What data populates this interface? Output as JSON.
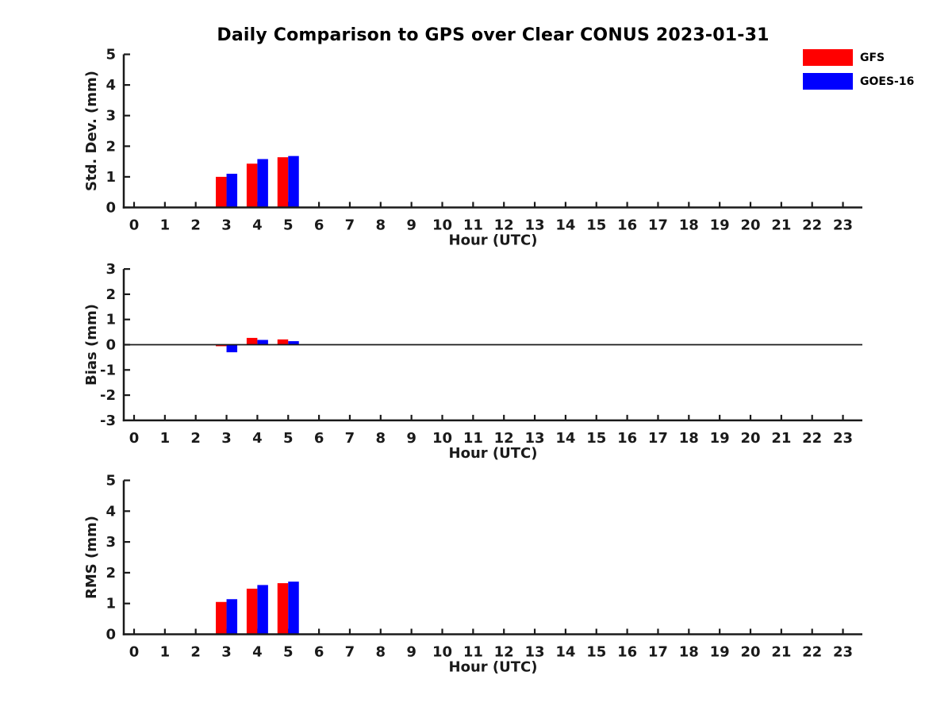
{
  "title": "Daily Comparison to GPS over Clear CONUS 2023-01-31",
  "legend": {
    "position": "top-right",
    "items": [
      {
        "label": "GFS",
        "color": "#ff0000"
      },
      {
        "label": "GOES-16",
        "color": "#0000ff"
      }
    ]
  },
  "axis_color": "#1a1a1a",
  "chart_data": [
    {
      "id": "stddev",
      "type": "bar",
      "title": "",
      "xlabel": "Hour (UTC)",
      "ylabel": "Std. Dev. (mm)",
      "ylim": [
        0,
        5
      ],
      "yticks": [
        0,
        1,
        2,
        3,
        4,
        5
      ],
      "grid": false,
      "categories": [
        0,
        1,
        2,
        3,
        4,
        5,
        6,
        7,
        8,
        9,
        10,
        11,
        12,
        13,
        14,
        15,
        16,
        17,
        18,
        19,
        20,
        21,
        22,
        23
      ],
      "series": [
        {
          "name": "GFS",
          "color": "#ff0000",
          "values": [
            null,
            null,
            null,
            1.0,
            1.43,
            1.64,
            null,
            null,
            null,
            null,
            null,
            null,
            null,
            null,
            null,
            null,
            null,
            null,
            null,
            null,
            null,
            null,
            null,
            null
          ]
        },
        {
          "name": "GOES-16",
          "color": "#0000ff",
          "values": [
            null,
            null,
            null,
            1.1,
            1.58,
            1.68,
            null,
            null,
            null,
            null,
            null,
            null,
            null,
            null,
            null,
            null,
            null,
            null,
            null,
            null,
            null,
            null,
            null,
            null
          ]
        }
      ]
    },
    {
      "id": "bias",
      "type": "bar",
      "title": "",
      "xlabel": "Hour (UTC)",
      "ylabel": "Bias (mm)",
      "ylim": [
        -3,
        3
      ],
      "yticks": [
        -3,
        -2,
        -1,
        0,
        1,
        2,
        3
      ],
      "zero_line": true,
      "grid": false,
      "categories": [
        0,
        1,
        2,
        3,
        4,
        5,
        6,
        7,
        8,
        9,
        10,
        11,
        12,
        13,
        14,
        15,
        16,
        17,
        18,
        19,
        20,
        21,
        22,
        23
      ],
      "series": [
        {
          "name": "GFS",
          "color": "#ff0000",
          "values": [
            null,
            null,
            null,
            -0.06,
            0.27,
            0.21,
            null,
            null,
            null,
            null,
            null,
            null,
            null,
            null,
            null,
            null,
            null,
            null,
            null,
            null,
            null,
            null,
            null,
            null
          ]
        },
        {
          "name": "GOES-16",
          "color": "#0000ff",
          "values": [
            null,
            null,
            null,
            -0.3,
            0.19,
            0.14,
            null,
            null,
            null,
            null,
            null,
            null,
            null,
            null,
            null,
            null,
            null,
            null,
            null,
            null,
            null,
            null,
            null,
            null
          ]
        }
      ]
    },
    {
      "id": "rms",
      "type": "bar",
      "title": "",
      "xlabel": "Hour (UTC)",
      "ylabel": "RMS (mm)",
      "ylim": [
        0,
        5
      ],
      "yticks": [
        0,
        1,
        2,
        3,
        4,
        5
      ],
      "grid": false,
      "categories": [
        0,
        1,
        2,
        3,
        4,
        5,
        6,
        7,
        8,
        9,
        10,
        11,
        12,
        13,
        14,
        15,
        16,
        17,
        18,
        19,
        20,
        21,
        22,
        23
      ],
      "series": [
        {
          "name": "GFS",
          "color": "#ff0000",
          "values": [
            null,
            null,
            null,
            1.05,
            1.48,
            1.66,
            null,
            null,
            null,
            null,
            null,
            null,
            null,
            null,
            null,
            null,
            null,
            null,
            null,
            null,
            null,
            null,
            null,
            null
          ]
        },
        {
          "name": "GOES-16",
          "color": "#0000ff",
          "values": [
            null,
            null,
            null,
            1.14,
            1.6,
            1.71,
            null,
            null,
            null,
            null,
            null,
            null,
            null,
            null,
            null,
            null,
            null,
            null,
            null,
            null,
            null,
            null,
            null,
            null
          ]
        }
      ]
    }
  ]
}
